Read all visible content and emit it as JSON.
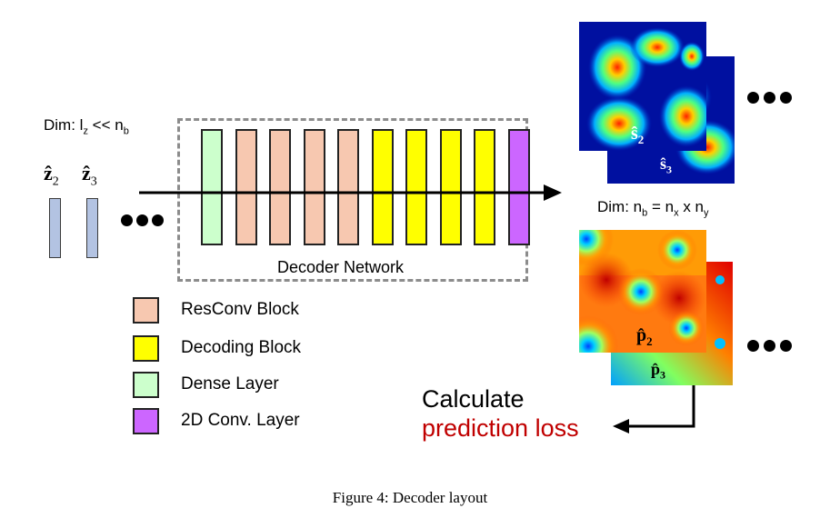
{
  "latent": {
    "labels": [
      {
        "base": "ẑ",
        "sub": "2"
      },
      {
        "base": "ẑ",
        "sub": "3"
      }
    ],
    "dim_label": {
      "prefix": "Dim: l",
      "sub": "z",
      "middle": " << n",
      "sub2": "b"
    }
  },
  "decoder": {
    "label": "Decoder Network",
    "blocks": [
      "dense",
      "resconv",
      "resconv",
      "resconv",
      "resconv",
      "decoding",
      "decoding",
      "decoding",
      "decoding",
      "conv2d"
    ]
  },
  "colors": {
    "resconv": "#f7c8b0",
    "decoding": "#ffff00",
    "dense": "#ccffcc",
    "conv2d": "#cc66ff",
    "loss_text": "#c00000"
  },
  "legend": [
    {
      "key": "resconv",
      "label": "ResConv Block"
    },
    {
      "key": "decoding",
      "label": "Decoding Block"
    },
    {
      "key": "dense",
      "label": "Dense Layer"
    },
    {
      "key": "conv2d",
      "label": "2D Conv. Layer"
    }
  ],
  "outputs": {
    "s_labels": [
      {
        "base": "ŝ",
        "sub": "2"
      },
      {
        "base": "ŝ",
        "sub": "3"
      }
    ],
    "p_labels": [
      {
        "base": "p̂",
        "sub": "2"
      },
      {
        "base": "p̂",
        "sub": "3"
      }
    ],
    "dim_label": {
      "prefix": "Dim: n",
      "sub": "b",
      "mid1": " = n",
      "sub2": "x",
      "mid2": " x n",
      "sub3": "y"
    }
  },
  "loss": {
    "line1": "Calculate",
    "line2": "prediction loss"
  },
  "caption": "Figure 4: Decoder layout"
}
